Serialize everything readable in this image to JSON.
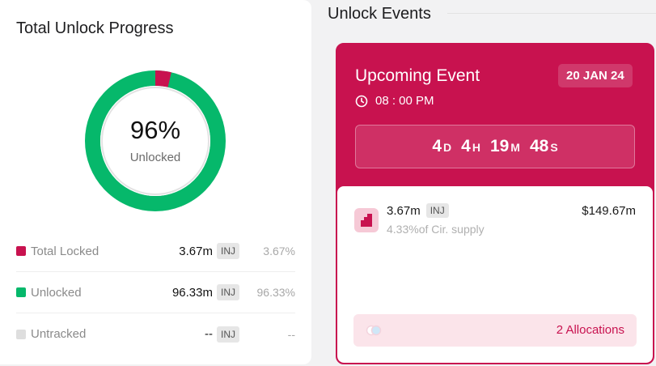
{
  "progress": {
    "title": "Total Unlock Progress",
    "percent_text": "96%",
    "percent_label": "Unlocked",
    "unlocked_fraction": 0.9633,
    "locked_fraction": 0.0367,
    "colors": {
      "unlocked": "#06b86b",
      "locked": "#c8124f",
      "untracked": "#dedede"
    },
    "legend": [
      {
        "name": "Total Locked",
        "amount": "3.67m",
        "token": "INJ",
        "percent": "3.67%",
        "color": "#c8124f"
      },
      {
        "name": "Unlocked",
        "amount": "96.33m",
        "token": "INJ",
        "percent": "96.33%",
        "color": "#06b86b"
      },
      {
        "name": "Untracked",
        "amount": "--",
        "token": "INJ",
        "percent": "--",
        "color": "#dedede"
      }
    ]
  },
  "events": {
    "section_title": "Unlock Events",
    "upcoming": {
      "title": "Upcoming Event",
      "date": "20 JAN 24",
      "time": "08 : 00 PM",
      "clock_icon": "clock-icon",
      "countdown": {
        "days": "4",
        "days_unit": "D",
        "hours": "4",
        "hours_unit": "H",
        "minutes": "19",
        "minutes_unit": "M",
        "seconds": "48",
        "seconds_unit": "S"
      },
      "allocation": {
        "icon": "unlock-chart-icon",
        "amount": "3.67m",
        "token": "INJ",
        "supply_text": "4.33%of Cir. supply",
        "usd_value": "$149.67m"
      },
      "allocations_link": "2 Allocations",
      "accent_color": "#c8124f"
    }
  }
}
